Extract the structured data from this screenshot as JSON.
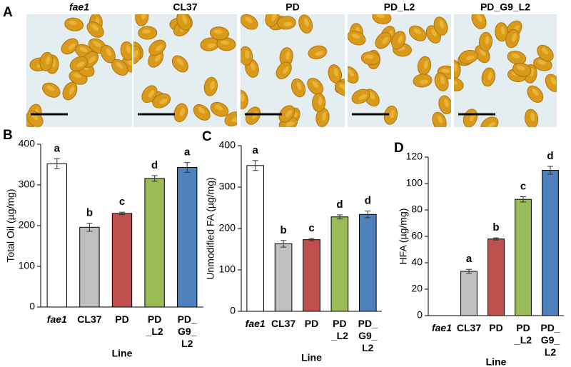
{
  "panel_a": {
    "label": "A",
    "images": [
      "fae1",
      "CL37",
      "PD",
      "PD_L2",
      "PD_G9_L2"
    ]
  },
  "chart_data": [
    {
      "type": "bar",
      "label": "B",
      "ylabel": "Total Oil (µg/mg)",
      "xlabel": "Line",
      "categories": [
        "fae1",
        "CL37",
        "PD",
        "PD\n_L2",
        "PD_\nG9_\nL2"
      ],
      "values": [
        352,
        196,
        230,
        316,
        343
      ],
      "errors": [
        12,
        10,
        3,
        7,
        12
      ],
      "letters": [
        "a",
        "b",
        "c",
        "d",
        "a"
      ],
      "colors": [
        "#ffffff",
        "#bfbfbf",
        "#c0504d",
        "#9bbb59",
        "#4f81bd"
      ],
      "ylim": [
        0,
        400
      ],
      "yticks": [
        0,
        100,
        200,
        300,
        400
      ]
    },
    {
      "type": "bar",
      "label": "C",
      "ylabel": "Unmodified FA (µg/mg)",
      "xlabel": "Line",
      "categories": [
        "fae1",
        "CL37",
        "PD",
        "PD\n_L2",
        "PD_\nG9_\nL2"
      ],
      "values": [
        352,
        163,
        173,
        228,
        234
      ],
      "errors": [
        12,
        8,
        3,
        5,
        8
      ],
      "letters": [
        "a",
        "b",
        "c",
        "d",
        "d"
      ],
      "colors": [
        "#ffffff",
        "#bfbfbf",
        "#c0504d",
        "#9bbb59",
        "#4f81bd"
      ],
      "ylim": [
        0,
        400
      ],
      "yticks": [
        0,
        100,
        200,
        300,
        400
      ]
    },
    {
      "type": "bar",
      "label": "D",
      "ylabel": "HFA (µg/mg)",
      "xlabel": "Line",
      "categories": [
        "fae1",
        "CL37",
        "PD",
        "PD\n_L2",
        "PD_\nG9_\nL2"
      ],
      "values": [
        null,
        33.5,
        58,
        88,
        110
      ],
      "errors": [
        null,
        1.5,
        0.8,
        2,
        3
      ],
      "letters": [
        null,
        "a",
        "b",
        "c",
        "d"
      ],
      "colors": [
        "#ffffff",
        "#bfbfbf",
        "#c0504d",
        "#9bbb59",
        "#4f81bd"
      ],
      "ylim": [
        0,
        120
      ],
      "yticks": [
        0,
        20,
        40,
        60,
        80,
        100,
        120
      ]
    }
  ]
}
